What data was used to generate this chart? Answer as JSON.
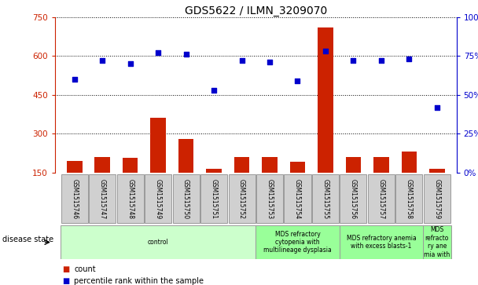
{
  "title": "GDS5622 / ILMN_3209070",
  "samples": [
    "GSM1515746",
    "GSM1515747",
    "GSM1515748",
    "GSM1515749",
    "GSM1515750",
    "GSM1515751",
    "GSM1515752",
    "GSM1515753",
    "GSM1515754",
    "GSM1515755",
    "GSM1515756",
    "GSM1515757",
    "GSM1515758",
    "GSM1515759"
  ],
  "counts": [
    195,
    210,
    205,
    360,
    280,
    165,
    210,
    210,
    190,
    710,
    210,
    210,
    230,
    165
  ],
  "percentiles": [
    60,
    72,
    70,
    77,
    76,
    53,
    72,
    71,
    59,
    78,
    72,
    72,
    73,
    42
  ],
  "ylim_left": [
    150,
    750
  ],
  "ylim_right": [
    0,
    100
  ],
  "yticks_left": [
    150,
    300,
    450,
    600,
    750
  ],
  "yticks_right": [
    0,
    25,
    50,
    75,
    100
  ],
  "bar_color": "#cc2200",
  "dot_color": "#0000cc",
  "bar_width": 0.55,
  "disease_groups": [
    {
      "label": "control",
      "start": 0,
      "end": 7,
      "color": "#ccffcc"
    },
    {
      "label": "MDS refractory\ncytopenia with\nmultilineage dysplasia",
      "start": 7,
      "end": 10,
      "color": "#99ff99"
    },
    {
      "label": "MDS refractory anemia\nwith excess blasts-1",
      "start": 10,
      "end": 13,
      "color": "#99ff99"
    },
    {
      "label": "MDS\nrefracto\nry ane\nmia with",
      "start": 13,
      "end": 14,
      "color": "#99ff99"
    }
  ],
  "legend_count_label": "count",
  "legend_pct_label": "percentile rank within the sample",
  "disease_state_label": "disease state",
  "bg_color": "#ffffff",
  "tick_label_color_left": "#cc2200",
  "tick_label_color_right": "#0000cc",
  "grid_color": "#000000",
  "axis_area_bg": "#ffffff",
  "sample_box_color": "#d0d0d0",
  "sample_box_edge": "#999999"
}
